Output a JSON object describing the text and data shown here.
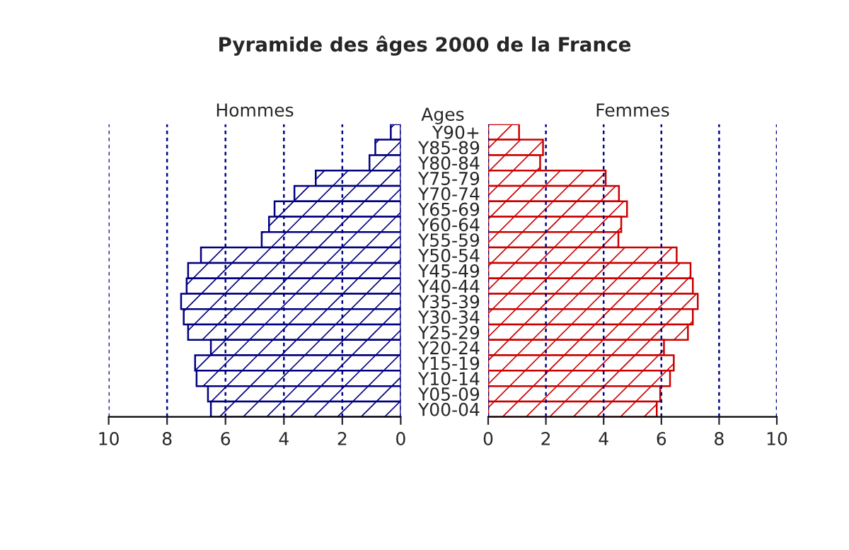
{
  "chart_data": [
    {
      "type": "bar",
      "title": "Pyramide des âges 2000 de la France",
      "subtitle": "Hommes",
      "orientation": "horizontal",
      "values": [
        0.34,
        0.87,
        1.07,
        2.91,
        3.64,
        4.32,
        4.51,
        4.76,
        6.84,
        7.28,
        7.33,
        7.52,
        7.43,
        7.28,
        6.5,
        7.04,
        6.99,
        6.6,
        6.5
      ],
      "color": "#000080",
      "xlim": [
        10,
        0
      ],
      "xticks": [
        10,
        8,
        6,
        4,
        2,
        0
      ],
      "grid": "x",
      "tick_labels": "x"
    },
    {
      "type": "bar",
      "subtitle": "Femmes",
      "ylabel": "Ages",
      "orientation": "horizontal",
      "categories": [
        "Y90+",
        "Y85-89",
        "Y80-84",
        "Y75-79",
        "Y70-74",
        "Y65-69",
        "Y60-64",
        "Y55-59",
        "Y50-54",
        "Y45-49",
        "Y40-44",
        "Y35-39",
        "Y30-34",
        "Y25-29",
        "Y20-24",
        "Y15-19",
        "Y10-14",
        "Y05-09",
        "Y00-04"
      ],
      "values": [
        1.07,
        1.9,
        1.8,
        4.07,
        4.53,
        4.81,
        4.61,
        4.51,
        6.53,
        7.01,
        7.09,
        7.26,
        7.09,
        6.92,
        6.09,
        6.43,
        6.3,
        5.96,
        5.84
      ],
      "color": "#cc0000",
      "xlim": [
        0,
        10
      ],
      "xticks": [
        0,
        2,
        4,
        6,
        8,
        10
      ],
      "grid": "x"
    }
  ]
}
